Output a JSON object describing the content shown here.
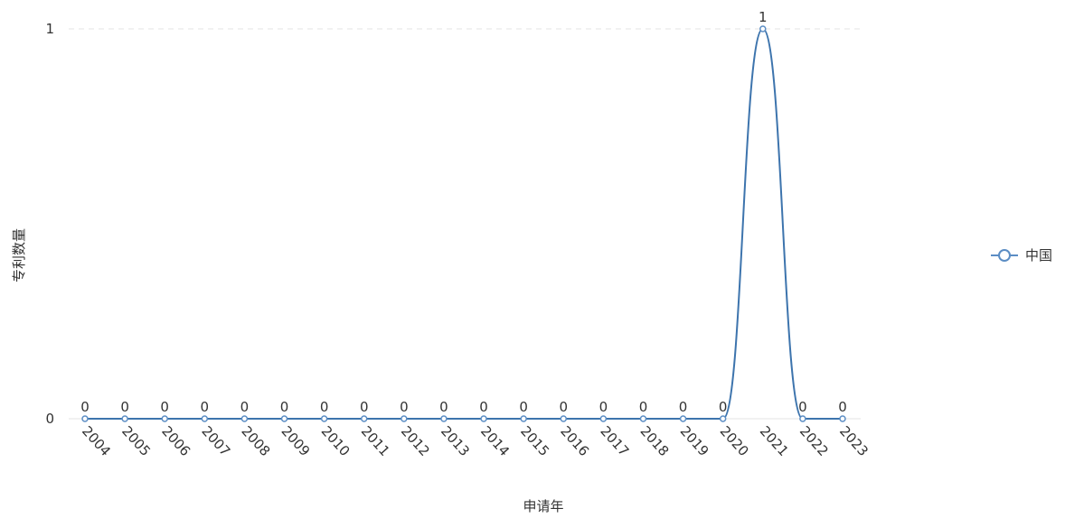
{
  "chart_data": {
    "type": "line",
    "title": "",
    "xlabel": "申请年",
    "ylabel": "专利数量",
    "categories": [
      "2004",
      "2005",
      "2006",
      "2007",
      "2008",
      "2009",
      "2010",
      "2011",
      "2012",
      "2013",
      "2014",
      "2015",
      "2016",
      "2017",
      "2018",
      "2019",
      "2020",
      "2021",
      "2022",
      "2023"
    ],
    "series": [
      {
        "name": "中国",
        "values": [
          0,
          0,
          0,
          0,
          0,
          0,
          0,
          0,
          0,
          0,
          0,
          0,
          0,
          0,
          0,
          0,
          0,
          1,
          0,
          0
        ],
        "color": "#3d74ad"
      }
    ],
    "ylim": [
      0,
      1
    ],
    "yticks": [
      "0",
      "1"
    ],
    "grid": true,
    "legend": "right",
    "smooth": true,
    "show_data_labels": true
  }
}
